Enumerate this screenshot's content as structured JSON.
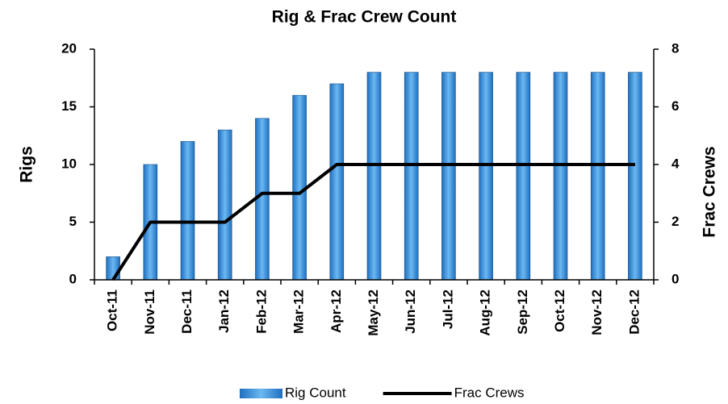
{
  "chart_data": {
    "type": "combo",
    "title": "Rig & Frac Crew Count",
    "y_label": "Rigs",
    "y2_label": "Frac Crews",
    "categories": [
      "Oct-11",
      "Nov-11",
      "Dec-11",
      "Jan-12",
      "Feb-12",
      "Mar-12",
      "Apr-12",
      "May-12",
      "Jun-12",
      "Jul-12",
      "Aug-12",
      "Sep-12",
      "Oct-12",
      "Nov-12",
      "Dec-12"
    ],
    "series": [
      {
        "name": "Rig Count",
        "type": "bar",
        "color": "#1f6fbf",
        "values": [
          2,
          10,
          12,
          13,
          14,
          16,
          17,
          18,
          18,
          18,
          18,
          18,
          18,
          18,
          18
        ]
      },
      {
        "name": "Frac Crews",
        "type": "line",
        "axis": "y2",
        "color": "#000000",
        "values": [
          0,
          2,
          2,
          2,
          3,
          3,
          4,
          4,
          4,
          4,
          4,
          4,
          4,
          4,
          4
        ]
      }
    ],
    "ylim": [
      0,
      20
    ],
    "yticks": [
      0,
      5,
      10,
      15,
      20
    ],
    "y2lim": [
      0,
      8
    ],
    "y2ticks": [
      0,
      2,
      4,
      6,
      8
    ],
    "legend": "bottom"
  }
}
